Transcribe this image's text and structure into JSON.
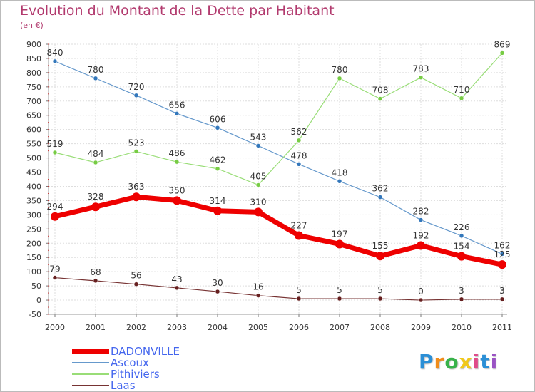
{
  "chart_data": {
    "type": "line",
    "title": "Evolution du Montant de la Dette par Habitant",
    "subtitle": "(en €)",
    "x": [
      "2000",
      "2001",
      "2002",
      "2003",
      "2004",
      "2005",
      "2006",
      "2007",
      "2008",
      "2009",
      "2010",
      "2011"
    ],
    "ylim": [
      -50,
      900
    ],
    "yticks": [
      -50,
      0,
      50,
      100,
      150,
      200,
      250,
      300,
      350,
      400,
      450,
      500,
      550,
      600,
      650,
      700,
      750,
      800,
      850,
      900
    ],
    "grid": true,
    "legend_position": "bottom-left",
    "series": [
      {
        "name": "Ascoux",
        "color": "#6699cc",
        "marker": "#3377bb",
        "width": 1.2,
        "values": [
          840,
          780,
          720,
          656,
          606,
          543,
          478,
          418,
          362,
          282,
          226,
          162
        ],
        "labels": [
          "840",
          "780",
          "720",
          "656",
          "606",
          "543",
          "478",
          "418",
          "362",
          "282",
          "226",
          "162"
        ]
      },
      {
        "name": "Pithiviers",
        "color": "#99dd77",
        "marker": "#77cc44",
        "width": 1.2,
        "values": [
          519,
          484,
          523,
          486,
          462,
          405,
          562,
          780,
          708,
          783,
          710,
          869
        ],
        "labels": [
          "519",
          "484",
          "523",
          "486",
          "462",
          "405",
          "562",
          "780",
          "708",
          "783",
          "710",
          "869"
        ]
      },
      {
        "name": "Laas",
        "color": "#773333",
        "marker": "#661f1f",
        "width": 1.2,
        "values": [
          79,
          68,
          56,
          43,
          30,
          16,
          5,
          5,
          5,
          0,
          3,
          3
        ],
        "labels": [
          "79",
          "68",
          "56",
          "43",
          "30",
          "16",
          "5",
          "5",
          "5",
          "0",
          "3",
          "3"
        ]
      },
      {
        "name": "DADONVILLE",
        "color": "#ee0000",
        "marker": "#ee0000",
        "width": 7,
        "values": [
          294,
          328,
          363,
          350,
          314,
          310,
          227,
          197,
          155,
          192,
          154,
          125
        ],
        "labels": [
          "294",
          "328",
          "363",
          "350",
          "314",
          "310",
          "227",
          "197",
          "155",
          "192",
          "154",
          "125"
        ]
      }
    ],
    "legend_order": [
      "DADONVILLE",
      "Ascoux",
      "Pithiviers",
      "Laas"
    ]
  },
  "brand": {
    "letters": [
      "P",
      "r",
      "o",
      "x",
      "i",
      "t",
      "i"
    ],
    "colors": [
      "#2b8fd6",
      "#f08c1a",
      "#38b24a",
      "#f0c81a",
      "#e04a8a",
      "#2b8fd6",
      "#9a52c4"
    ]
  }
}
